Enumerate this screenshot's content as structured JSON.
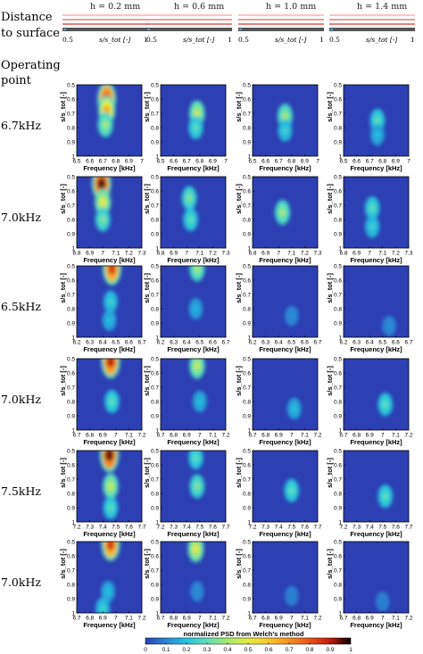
{
  "labels": {
    "distance_title": [
      "Distance",
      "to surface"
    ],
    "operating_point_title": [
      "Operating",
      "point"
    ],
    "row_labels": [
      "6.7kHz",
      "7.0kHz",
      "6.5kHz",
      "7.0kHz",
      "7.5kHz",
      "7.0kHz"
    ],
    "column_headers": [
      "h = 0.2 mm",
      "h = 0.6 mm",
      "h = 1.0 mm",
      "h = 1.4 mm"
    ]
  },
  "schematic": {
    "axis_label": "s/s_tot [-]",
    "tick_labels": [
      "0.5",
      "1"
    ]
  },
  "colorbar": {
    "label": "normalized PSD from Welch's method",
    "ticks": [
      "0",
      "0.1",
      "0.2",
      "0.3",
      "0.4",
      "0.5",
      "0.6",
      "0.7",
      "0.8",
      "0.9",
      "1"
    ],
    "stops": [
      "#2c3fb3",
      "#2a86d6",
      "#25c4e0",
      "#5fe0b8",
      "#a8e870",
      "#e6ec3e",
      "#f7c830",
      "#f59020",
      "#e9541a",
      "#c01b10",
      "#000000"
    ]
  },
  "chart_data": {
    "type": "heatmap",
    "xlabel": "Frequency [kHz]",
    "ylabel": "s/s_tot [-]",
    "ylim": [
      1,
      0.5
    ],
    "y_ticks": [
      0.5,
      0.6,
      0.7,
      0.8,
      0.9,
      1
    ],
    "value_range": [
      0,
      1
    ],
    "rows": [
      {
        "label": "6.7kHz",
        "xlim": [
          6.5,
          7
        ],
        "x_ticks": [
          "6.5",
          "6.6",
          "6.7",
          "6.8",
          "6.9",
          "7"
        ],
        "panels": [
          {
            "h": "0.2 mm",
            "center_x": 6.73,
            "blobs": [
              {
                "x": 6.73,
                "y": 0.6,
                "value": 0.9
              },
              {
                "x": 6.73,
                "y": 0.68,
                "value": 0.65
              },
              {
                "x": 6.72,
                "y": 0.78,
                "value": 0.4
              }
            ]
          },
          {
            "h": "0.6 mm",
            "center_x": 6.78,
            "blobs": [
              {
                "x": 6.78,
                "y": 0.7,
                "value": 0.45
              },
              {
                "x": 6.77,
                "y": 0.8,
                "value": 0.3
              }
            ]
          },
          {
            "h": "1.0 mm",
            "center_x": 6.75,
            "blobs": [
              {
                "x": 6.75,
                "y": 0.72,
                "value": 0.4
              },
              {
                "x": 6.75,
                "y": 0.82,
                "value": 0.25
              }
            ]
          },
          {
            "h": "1.4 mm",
            "center_x": 6.76,
            "blobs": [
              {
                "x": 6.76,
                "y": 0.75,
                "value": 0.3
              },
              {
                "x": 6.76,
                "y": 0.85,
                "value": 0.2
              }
            ]
          }
        ]
      },
      {
        "label": "7.0kHz",
        "xlim": [
          6.8,
          7.3
        ],
        "x_ticks": [
          "6.8",
          "6.9",
          "7",
          "7.1",
          "7.2",
          "7.3"
        ],
        "panels": [
          {
            "h": "0.2 mm",
            "center_x": 7.0,
            "blobs": [
              {
                "x": 6.99,
                "y": 0.55,
                "value": 0.95
              },
              {
                "x": 7.0,
                "y": 0.68,
                "value": 0.5
              },
              {
                "x": 7.0,
                "y": 0.8,
                "value": 0.35
              }
            ]
          },
          {
            "h": "0.6 mm",
            "center_x": 7.02,
            "blobs": [
              {
                "x": 7.02,
                "y": 0.65,
                "value": 0.35
              },
              {
                "x": 7.03,
                "y": 0.8,
                "value": 0.3
              }
            ]
          },
          {
            "h": "1.0 mm",
            "center_x": 7.03,
            "blobs": [
              {
                "x": 7.03,
                "y": 0.75,
                "value": 0.4
              }
            ]
          },
          {
            "h": "1.4 mm",
            "center_x": 7.02,
            "blobs": [
              {
                "x": 7.02,
                "y": 0.72,
                "value": 0.3
              },
              {
                "x": 7.02,
                "y": 0.85,
                "value": 0.25
              }
            ]
          }
        ]
      },
      {
        "label": "6.5kHz",
        "xlim": [
          6.2,
          6.7
        ],
        "x_ticks": [
          "6.2",
          "6.3",
          "6.4",
          "6.5",
          "6.6",
          "6.7"
        ],
        "panels": [
          {
            "h": "0.2 mm",
            "center_x": 6.46,
            "blobs": [
              {
                "x": 6.47,
                "y": 0.52,
                "value": 0.85
              },
              {
                "x": 6.46,
                "y": 0.75,
                "value": 0.25
              },
              {
                "x": 6.45,
                "y": 0.88,
                "value": 0.2
              }
            ]
          },
          {
            "h": "0.6 mm",
            "center_x": 6.48,
            "blobs": [
              {
                "x": 6.48,
                "y": 0.52,
                "value": 0.4
              },
              {
                "x": 6.47,
                "y": 0.8,
                "value": 0.18
              }
            ]
          },
          {
            "h": "1.0 mm",
            "center_x": 6.5,
            "blobs": [
              {
                "x": 6.5,
                "y": 0.85,
                "value": 0.12
              }
            ]
          },
          {
            "h": "1.4 mm",
            "center_x": 6.55,
            "blobs": [
              {
                "x": 6.55,
                "y": 0.92,
                "value": 0.12
              }
            ]
          }
        ]
      },
      {
        "label": "7.0kHz",
        "xlim": [
          6.7,
          7.2
        ],
        "x_ticks": [
          "6.7",
          "6.8",
          "6.9",
          "7",
          "7.1",
          "7.2"
        ],
        "panels": [
          {
            "h": "0.2 mm",
            "center_x": 6.96,
            "blobs": [
              {
                "x": 6.96,
                "y": 0.52,
                "value": 0.9
              },
              {
                "x": 6.97,
                "y": 0.8,
                "value": 0.3
              }
            ]
          },
          {
            "h": "0.6 mm",
            "center_x": 7.0,
            "blobs": [
              {
                "x": 6.98,
                "y": 0.55,
                "value": 0.45
              },
              {
                "x": 7.0,
                "y": 0.8,
                "value": 0.2
              }
            ]
          },
          {
            "h": "1.0 mm",
            "center_x": 7.02,
            "blobs": [
              {
                "x": 7.02,
                "y": 0.85,
                "value": 0.2
              }
            ]
          },
          {
            "h": "1.4 mm",
            "center_x": 7.02,
            "blobs": [
              {
                "x": 7.02,
                "y": 0.82,
                "value": 0.3
              }
            ]
          }
        ]
      },
      {
        "label": "7.5kHz",
        "xlim": [
          7.2,
          7.7
        ],
        "x_ticks": [
          "7.2",
          "7.3",
          "7.4",
          "7.5",
          "7.6",
          "7.7"
        ],
        "panels": [
          {
            "h": "0.2 mm",
            "center_x": 7.46,
            "blobs": [
              {
                "x": 7.45,
                "y": 0.53,
                "value": 0.95
              },
              {
                "x": 7.46,
                "y": 0.75,
                "value": 0.45
              },
              {
                "x": 7.46,
                "y": 0.9,
                "value": 0.3
              }
            ]
          },
          {
            "h": "0.6 mm",
            "center_x": 7.48,
            "blobs": [
              {
                "x": 7.47,
                "y": 0.55,
                "value": 0.3
              },
              {
                "x": 7.48,
                "y": 0.75,
                "value": 0.35
              }
            ]
          },
          {
            "h": "1.0 mm",
            "center_x": 7.5,
            "blobs": [
              {
                "x": 7.5,
                "y": 0.78,
                "value": 0.3
              }
            ]
          },
          {
            "h": "1.4 mm",
            "center_x": 7.52,
            "blobs": [
              {
                "x": 7.52,
                "y": 0.82,
                "value": 0.3
              }
            ]
          }
        ]
      },
      {
        "label": "7.0kHz",
        "xlim": [
          6.7,
          7.2
        ],
        "x_ticks": [
          "6.7",
          "6.8",
          "6.9",
          "7",
          "7.1",
          "7.2"
        ],
        "panels": [
          {
            "h": "0.2 mm",
            "center_x": 6.96,
            "blobs": [
              {
                "x": 6.96,
                "y": 0.52,
                "value": 0.85
              },
              {
                "x": 6.94,
                "y": 0.85,
                "value": 0.2
              },
              {
                "x": 6.9,
                "y": 0.97,
                "value": 0.25
              }
            ]
          },
          {
            "h": "0.6 mm",
            "center_x": 6.98,
            "blobs": [
              {
                "x": 6.97,
                "y": 0.55,
                "value": 0.5
              },
              {
                "x": 6.98,
                "y": 0.85,
                "value": 0.12
              }
            ]
          },
          {
            "h": "1.0 mm",
            "center_x": 7.0,
            "blobs": [
              {
                "x": 7.0,
                "y": 0.88,
                "value": 0.1
              }
            ]
          },
          {
            "h": "1.4 mm",
            "center_x": 7.0,
            "blobs": [
              {
                "x": 7.0,
                "y": 0.92,
                "value": 0.1
              }
            ]
          }
        ]
      }
    ]
  }
}
